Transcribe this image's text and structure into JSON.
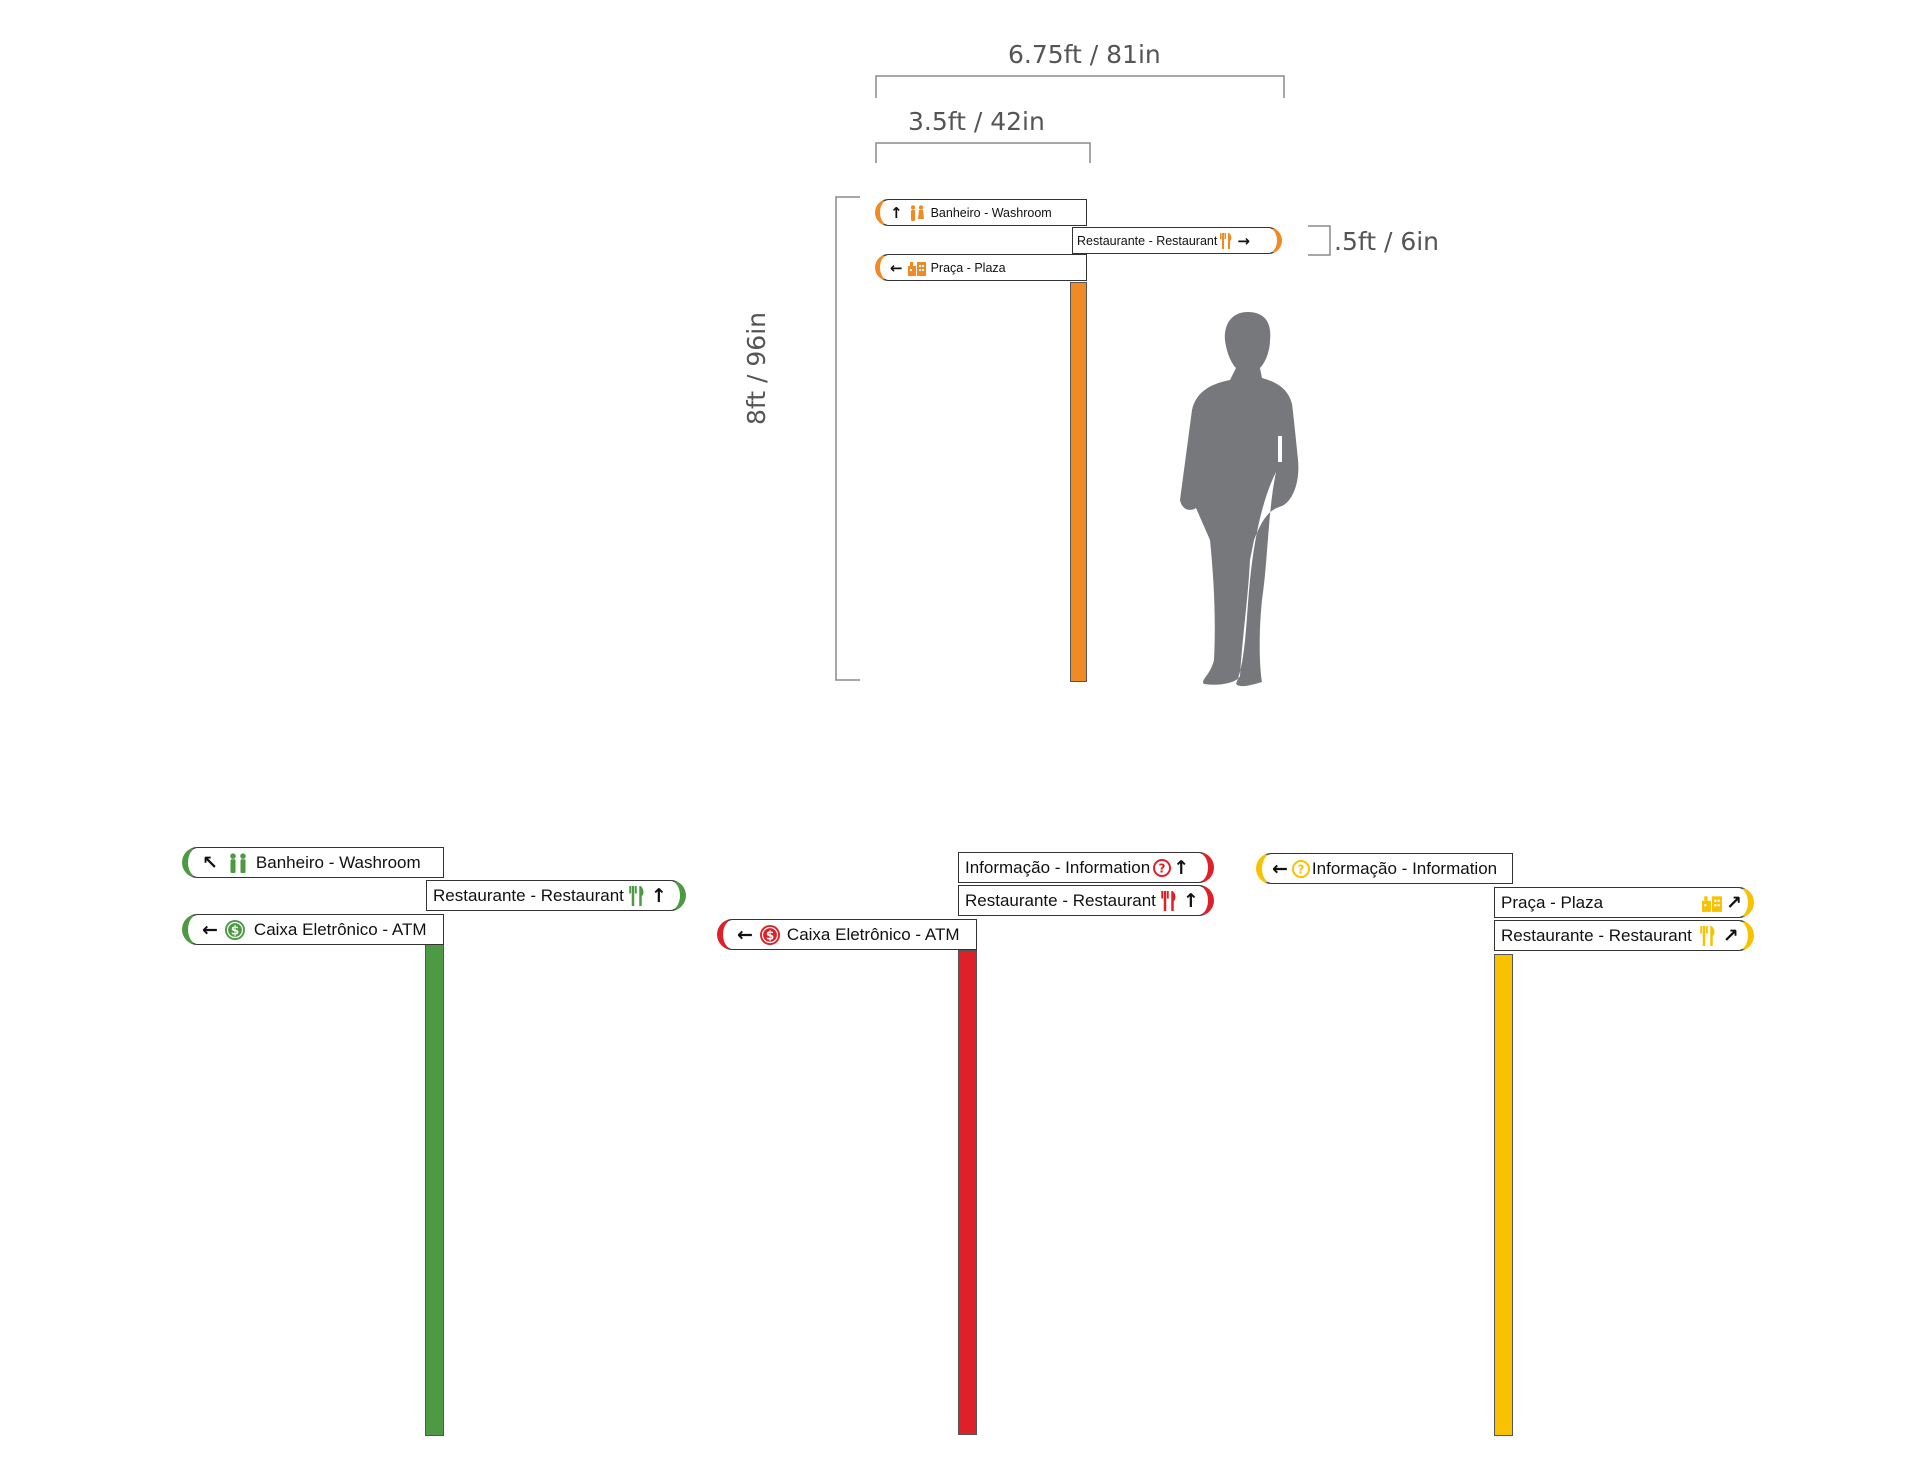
{
  "colors": {
    "orange": "#f08a24",
    "green": "#4e9a44",
    "red": "#e02028",
    "yellow": "#f8c200",
    "dimension": "#777777",
    "silhouette": "#77787b"
  },
  "dimensions": {
    "total_width": "6.75ft / 81in",
    "sign_width": "3.5ft / 42in",
    "sign_height": ".5ft / 6in",
    "total_height": "8ft / 96in"
  },
  "signs": {
    "orange": {
      "row1": {
        "arrow": "↑",
        "icon": "washroom-icon",
        "label": "Banheiro - Washroom"
      },
      "row2": {
        "label": "Restaurante - Restaurant",
        "icon": "restaurant-icon",
        "arrow": "→"
      },
      "row3": {
        "arrow": "←",
        "icon": "plaza-icon",
        "label": "Praça - Plaza"
      }
    },
    "green": {
      "row1": {
        "arrow": "↖",
        "icon": "washroom-icon",
        "label": "Banheiro - Washroom"
      },
      "row2": {
        "label": "Restaurante - Restaurant",
        "icon": "restaurant-icon",
        "arrow": "↑"
      },
      "row3": {
        "arrow": "←",
        "icon": "atm-icon",
        "label": "Caixa Eletrônico - ATM"
      }
    },
    "red": {
      "row1": {
        "label": "Informação - Information",
        "icon": "information-icon",
        "arrow": "↑"
      },
      "row2": {
        "label": "Restaurante - Restaurant",
        "icon": "restaurant-icon",
        "arrow": "↑"
      },
      "row3": {
        "arrow": "←",
        "icon": "atm-icon",
        "label": "Caixa Eletrônico - ATM"
      }
    },
    "yellow": {
      "row1": {
        "arrow": "←",
        "icon": "information-icon",
        "label": "Informação - Information"
      },
      "row2": {
        "label": "Praça - Plaza",
        "icon": "plaza-icon",
        "arrow": "↗"
      },
      "row3": {
        "label": "Restaurante - Restaurant",
        "icon": "restaurant-icon",
        "arrow": "↗"
      }
    }
  }
}
